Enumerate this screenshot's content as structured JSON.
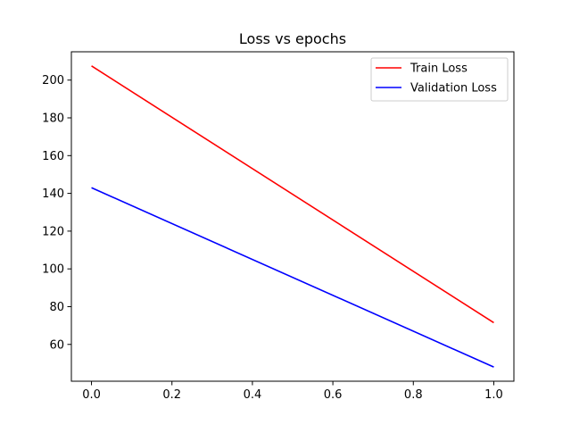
{
  "chart_data": {
    "type": "line",
    "title": "Loss vs epochs",
    "xlabel": "",
    "ylabel": "",
    "x": [
      0.0,
      1.0
    ],
    "series": [
      {
        "name": "Train Loss",
        "color": "#ff0000",
        "values": [
          207.5,
          71.5
        ]
      },
      {
        "name": "Validation Loss",
        "color": "#0000ff",
        "values": [
          143.0,
          48.0
        ]
      }
    ],
    "xlim": [
      -0.05,
      1.05
    ],
    "ylim": [
      40.5,
      215.0
    ],
    "xticks": [
      0.0,
      0.2,
      0.4,
      0.6,
      0.8,
      1.0
    ],
    "xtick_labels": [
      "0.0",
      "0.2",
      "0.4",
      "0.6",
      "0.8",
      "1.0"
    ],
    "yticks": [
      60,
      80,
      100,
      120,
      140,
      160,
      180,
      200
    ],
    "ytick_labels": [
      "60",
      "80",
      "100",
      "120",
      "140",
      "160",
      "180",
      "200"
    ],
    "grid": false,
    "legend_position": "top-right"
  }
}
